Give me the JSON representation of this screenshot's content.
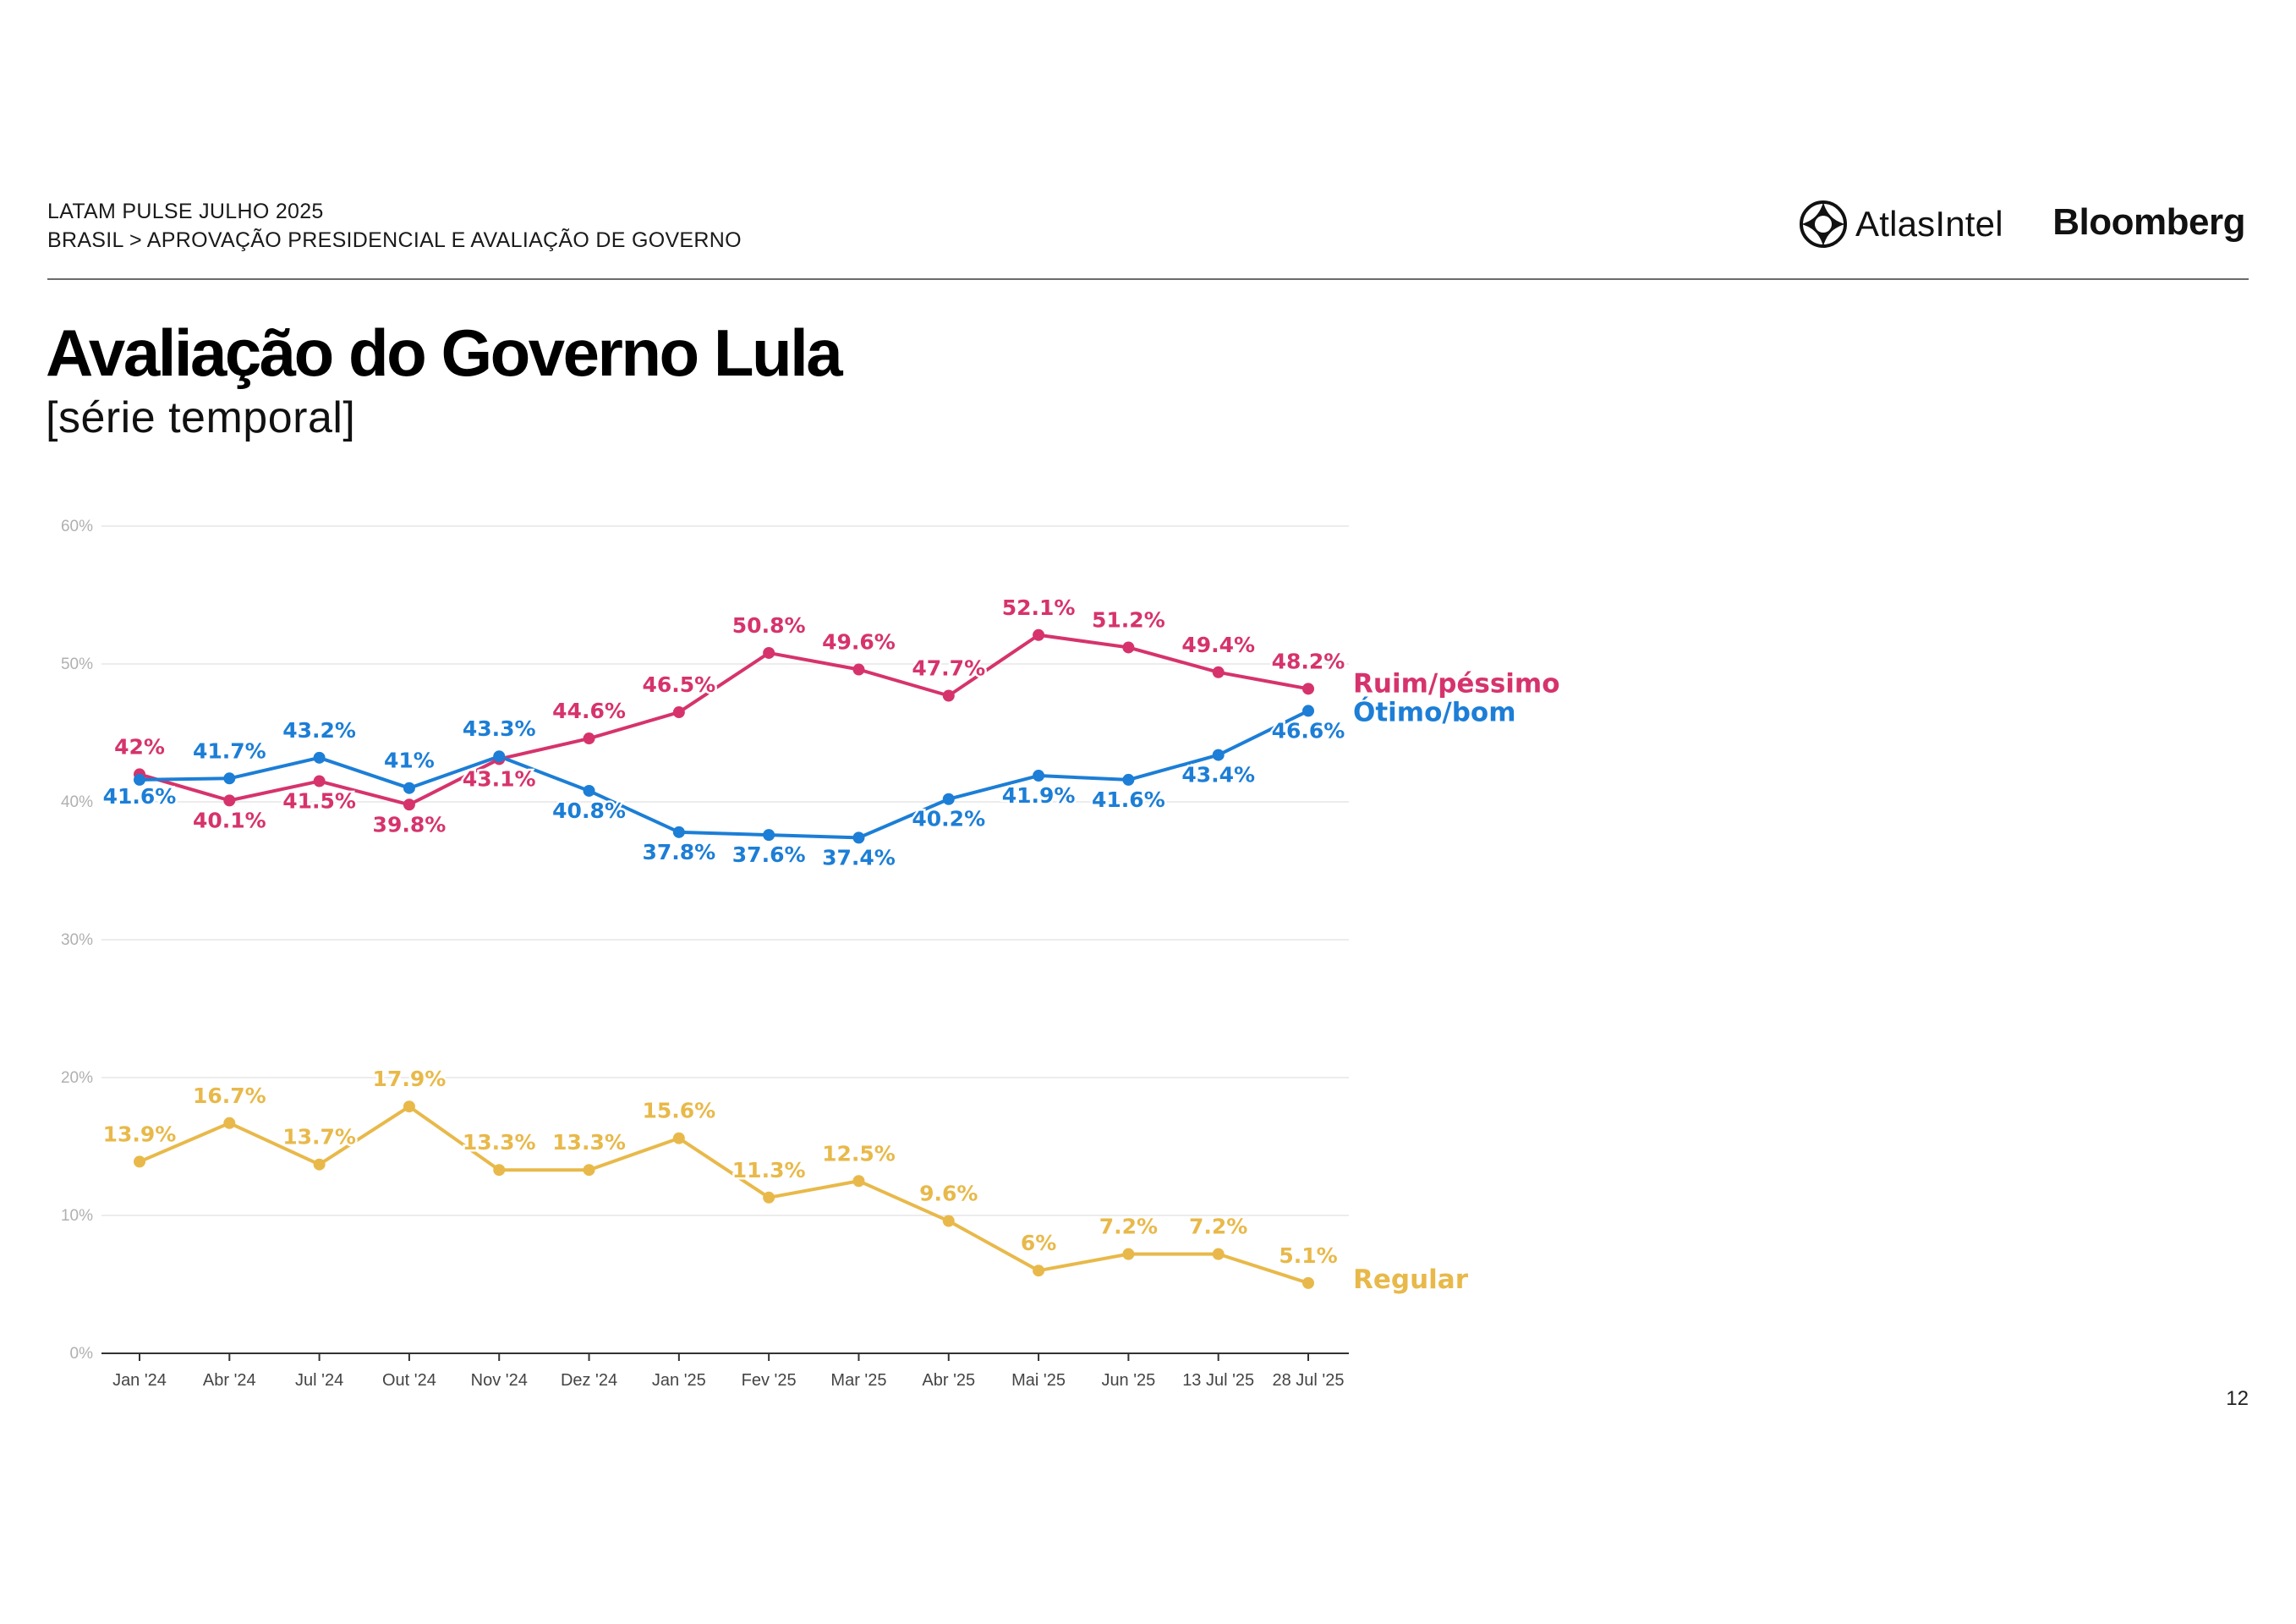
{
  "header": {
    "line1": "LATAM PULSE JULHO 2025",
    "line2": "BRASIL > APROVAÇÃO PRESIDENCIAL E AVALIAÇÃO DE GOVERNO"
  },
  "logos": {
    "atlas": "AtlasIntel",
    "bloomberg": "Bloomberg"
  },
  "title": "Avaliação do Governo Lula",
  "subtitle": "[série temporal]",
  "page_number": "12",
  "chart_data": {
    "type": "line",
    "categories": [
      "Jan '24",
      "Abr '24",
      "Jul '24",
      "Out '24",
      "Nov '24",
      "Dez '24",
      "Jan '25",
      "Fev '25",
      "Mar '25",
      "Abr '25",
      "Mai '25",
      "Jun '25",
      "13 Jul '25",
      "28 Jul '25"
    ],
    "ylim": [
      0,
      60
    ],
    "yticks": [
      0,
      10,
      20,
      30,
      40,
      50,
      60
    ],
    "ytick_labels": [
      "0%",
      "10%",
      "20%",
      "30%",
      "40%",
      "50%",
      "60%"
    ],
    "grid": true,
    "series": [
      {
        "name": "Ruim/péssimo",
        "color": "#d6336c",
        "values": [
          42,
          40.1,
          41.5,
          39.8,
          43.1,
          44.6,
          46.5,
          50.8,
          49.6,
          47.7,
          52.1,
          51.2,
          49.4,
          48.2
        ],
        "labels": [
          "42%",
          "40.1%",
          "41.5%",
          "39.8%",
          "43.1%",
          "44.6%",
          "46.5%",
          "50.8%",
          "49.6%",
          "47.7%",
          "52.1%",
          "51.2%",
          "49.4%",
          "48.2%"
        ]
      },
      {
        "name": "Ótimo/bom",
        "color": "#1c7ed6",
        "values": [
          41.6,
          41.7,
          43.2,
          41,
          43.3,
          40.8,
          37.8,
          37.6,
          37.4,
          40.2,
          41.9,
          41.6,
          43.4,
          46.6
        ],
        "labels": [
          "41.6%",
          "41.7%",
          "43.2%",
          "41%",
          "43.3%",
          "40.8%",
          "37.8%",
          "37.6%",
          "37.4%",
          "40.2%",
          "41.9%",
          "41.6%",
          "43.4%",
          "46.6%"
        ]
      },
      {
        "name": "Regular",
        "color": "#e8b94a",
        "values": [
          13.9,
          16.7,
          13.7,
          17.9,
          13.3,
          13.3,
          15.6,
          11.3,
          12.5,
          9.6,
          6,
          7.2,
          7.2,
          5.1
        ],
        "labels": [
          "13.9%",
          "16.7%",
          "13.7%",
          "17.9%",
          "13.3%",
          "13.3%",
          "15.6%",
          "11.3%",
          "12.5%",
          "9.6%",
          "6%",
          "7.2%",
          "7.2%",
          "5.1%"
        ]
      }
    ]
  }
}
